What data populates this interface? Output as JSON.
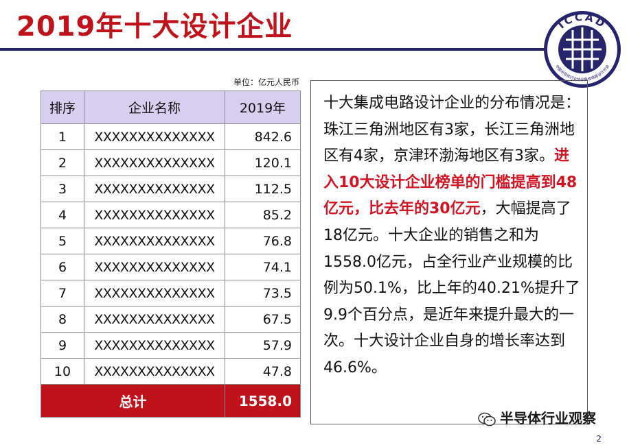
{
  "slide": {
    "title": "2019年十大设计企业",
    "unit_note": "单位：亿元人民币",
    "logo_text": "ICCAD",
    "logo_subtext": "中国半导体行业协会集成电路设计分会",
    "watermark": "半导体行业观察",
    "page_marker": "2"
  },
  "colors": {
    "title_red": "#c0121b",
    "rule_navy": "#27246e",
    "header_lavender": "#d8cef0",
    "highlight_red": "#d01422"
  },
  "table": {
    "headers": [
      "排序",
      "企业名称",
      "2019年"
    ],
    "rows": [
      {
        "rank": "1",
        "name": "XXXXXXXXXXXXXX",
        "value": "842.6"
      },
      {
        "rank": "2",
        "name": "XXXXXXXXXXXXXX",
        "value": "120.1"
      },
      {
        "rank": "3",
        "name": "XXXXXXXXXXXXXX",
        "value": "112.5"
      },
      {
        "rank": "4",
        "name": "XXXXXXXXXXXXXX",
        "value": "85.2"
      },
      {
        "rank": "5",
        "name": "XXXXXXXXXXXXXX",
        "value": "76.8"
      },
      {
        "rank": "6",
        "name": "XXXXXXXXXXXXXX",
        "value": "74.1"
      },
      {
        "rank": "7",
        "name": "XXXXXXXXXXXXXX",
        "value": "73.5"
      },
      {
        "rank": "8",
        "name": "XXXXXXXXXXXXXX",
        "value": "67.5"
      },
      {
        "rank": "9",
        "name": "XXXXXXXXXXXXXX",
        "value": "57.9"
      },
      {
        "rank": "10",
        "name": "XXXXXXXXXXXXXX",
        "value": "47.8"
      }
    ],
    "total_label": "总计",
    "total_value": "1558.0"
  },
  "summary": {
    "part1": "十大集成电路设计企业的分布情况是：珠江三角洲地区有3家，长江三角洲地区有4家，京津环渤海地区有3家。",
    "highlight": "进入10大设计企业榜单的门槛提高到48亿元，比去年的30亿元",
    "part2": "，大幅提高了18亿元。十大企业的销售之和为1558.0亿元，占全行业产业规模的比例为50.1%，比上年的40.21%提升了9.9个百分点，是近年来提升最大的一次。十大设计企业自身的增长率达到46.6%。"
  }
}
